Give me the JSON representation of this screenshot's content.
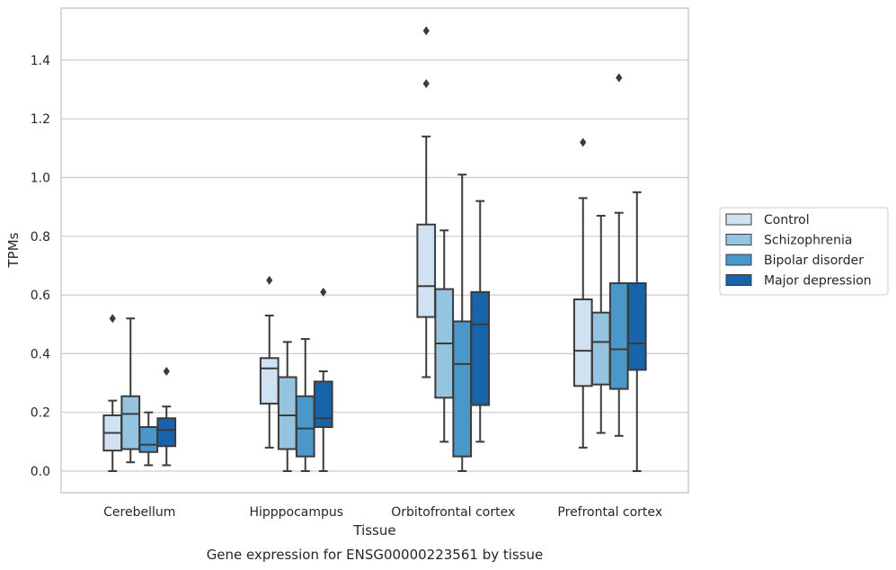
{
  "chart_data": {
    "type": "box",
    "title": "",
    "xlabel": "Tissue",
    "ylabel": "TPMs",
    "caption": "Gene expression for ENSG00000223561 by tissue",
    "ylim": [
      -0.07,
      1.58
    ],
    "yticks": [
      "0.0",
      "0.2",
      "0.4",
      "0.6",
      "0.8",
      "1.0",
      "1.2",
      "1.4"
    ],
    "grid": "horizontal",
    "legend_position": "right",
    "categories": [
      "Cerebellum",
      "Hipppocampus",
      "Orbitofrontal cortex",
      "Prefrontal cortex"
    ],
    "series": [
      {
        "name": "Control",
        "color": "#d0e1f2",
        "boxes": [
          {
            "min": 0.0,
            "q1": 0.07,
            "median": 0.13,
            "q3": 0.19,
            "max": 0.24,
            "outliers": [
              0.52
            ]
          },
          {
            "min": 0.08,
            "q1": 0.23,
            "median": 0.35,
            "q3": 0.385,
            "max": 0.53,
            "outliers": [
              0.65
            ]
          },
          {
            "min": 0.32,
            "q1": 0.525,
            "median": 0.63,
            "q3": 0.84,
            "max": 1.14,
            "outliers": [
              1.32,
              1.5
            ]
          },
          {
            "min": 0.08,
            "q1": 0.29,
            "median": 0.41,
            "q3": 0.585,
            "max": 0.93,
            "outliers": [
              1.12
            ]
          }
        ]
      },
      {
        "name": "Schizophrenia",
        "color": "#94c4df",
        "boxes": [
          {
            "min": 0.03,
            "q1": 0.075,
            "median": 0.195,
            "q3": 0.255,
            "max": 0.52,
            "outliers": []
          },
          {
            "min": 0.0,
            "q1": 0.075,
            "median": 0.19,
            "q3": 0.32,
            "max": 0.44,
            "outliers": []
          },
          {
            "min": 0.1,
            "q1": 0.25,
            "median": 0.435,
            "q3": 0.62,
            "max": 0.82,
            "outliers": []
          },
          {
            "min": 0.13,
            "q1": 0.295,
            "median": 0.44,
            "q3": 0.54,
            "max": 0.87,
            "outliers": []
          }
        ]
      },
      {
        "name": "Bipolar disorder",
        "color": "#4a98c9",
        "boxes": [
          {
            "min": 0.02,
            "q1": 0.065,
            "median": 0.09,
            "q3": 0.15,
            "max": 0.2,
            "outliers": []
          },
          {
            "min": 0.0,
            "q1": 0.05,
            "median": 0.145,
            "q3": 0.255,
            "max": 0.45,
            "outliers": []
          },
          {
            "min": 0.0,
            "q1": 0.05,
            "median": 0.365,
            "q3": 0.51,
            "max": 1.01,
            "outliers": []
          },
          {
            "min": 0.12,
            "q1": 0.28,
            "median": 0.415,
            "q3": 0.64,
            "max": 0.88,
            "outliers": [
              1.34
            ]
          }
        ]
      },
      {
        "name": "Major depression",
        "color": "#1764ab",
        "boxes": [
          {
            "min": 0.02,
            "q1": 0.085,
            "median": 0.14,
            "q3": 0.18,
            "max": 0.22,
            "outliers": [
              0.34
            ]
          },
          {
            "min": 0.0,
            "q1": 0.15,
            "median": 0.18,
            "q3": 0.305,
            "max": 0.34,
            "outliers": [
              0.61
            ]
          },
          {
            "min": 0.1,
            "q1": 0.225,
            "median": 0.5,
            "q3": 0.61,
            "max": 0.92,
            "outliers": []
          },
          {
            "min": 0.0,
            "q1": 0.345,
            "median": 0.435,
            "q3": 0.64,
            "max": 0.95,
            "outliers": []
          }
        ]
      }
    ]
  }
}
